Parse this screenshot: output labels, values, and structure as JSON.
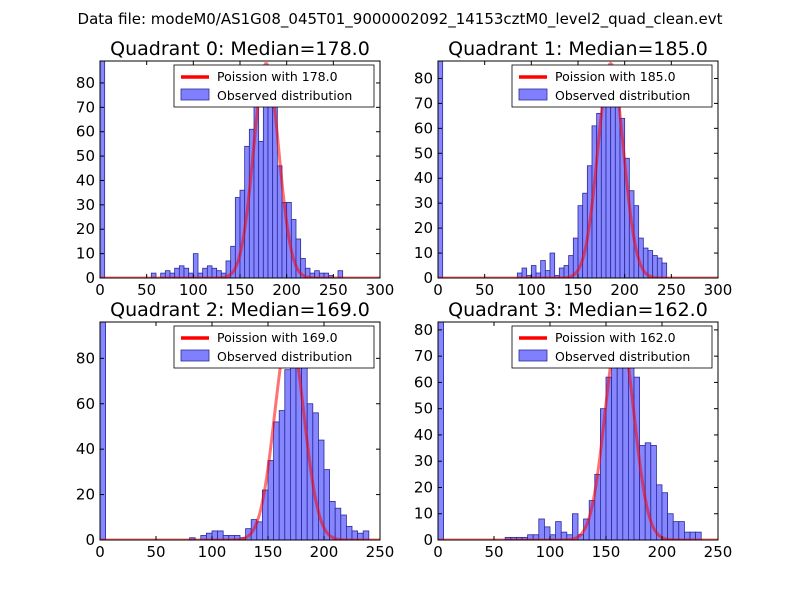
{
  "figure": {
    "suptitle": "Data file: modeM0/AS1G08_045T01_9000002092_14153cztM0_level2_quad_clean.evt"
  },
  "colors": {
    "histogram_fill": "#8080ff",
    "histogram_edge": "#2a2a9a",
    "poisson_line": "#ff0000",
    "axes": "#000000",
    "legend_edge": "#000000"
  },
  "chart_data": [
    {
      "type": "bar",
      "title": "Quadrant 0: Median=178.0",
      "legend": {
        "line": "Poission with 178.0",
        "bars": "Observed distribution",
        "position": "top-right"
      },
      "xlim": [
        0,
        300
      ],
      "ylim": [
        0,
        89
      ],
      "xticks": [
        0,
        50,
        100,
        150,
        200,
        250,
        300
      ],
      "yticks": [
        0,
        10,
        20,
        30,
        40,
        50,
        60,
        70,
        80
      ],
      "bin_width": 5,
      "bins": [
        [
          0,
          89
        ],
        [
          55,
          2
        ],
        [
          65,
          2
        ],
        [
          70,
          3
        ],
        [
          75,
          2
        ],
        [
          80,
          4
        ],
        [
          85,
          5
        ],
        [
          90,
          4
        ],
        [
          95,
          2
        ],
        [
          100,
          10
        ],
        [
          105,
          2
        ],
        [
          110,
          4
        ],
        [
          115,
          5
        ],
        [
          120,
          4
        ],
        [
          125,
          3
        ],
        [
          130,
          2
        ],
        [
          135,
          7
        ],
        [
          140,
          13
        ],
        [
          145,
          33
        ],
        [
          150,
          36
        ],
        [
          155,
          54
        ],
        [
          160,
          61
        ],
        [
          165,
          78
        ],
        [
          170,
          56
        ],
        [
          175,
          80
        ],
        [
          180,
          81
        ],
        [
          185,
          77
        ],
        [
          190,
          46
        ],
        [
          195,
          31
        ],
        [
          200,
          31
        ],
        [
          205,
          24
        ],
        [
          210,
          16
        ],
        [
          215,
          8
        ],
        [
          220,
          4
        ],
        [
          225,
          2
        ],
        [
          230,
          3
        ],
        [
          235,
          2
        ],
        [
          240,
          2
        ],
        [
          245,
          1
        ],
        [
          255,
          3
        ]
      ],
      "poisson": {
        "mean": 178.0,
        "peak": 88
      }
    },
    {
      "type": "bar",
      "title": "Quadrant 1: Median=185.0",
      "legend": {
        "line": "Poission with 185.0",
        "bars": "Observed distribution",
        "position": "top-right"
      },
      "xlim": [
        0,
        300
      ],
      "ylim": [
        0,
        87
      ],
      "xticks": [
        0,
        50,
        100,
        150,
        200,
        250,
        300
      ],
      "yticks": [
        0,
        10,
        20,
        30,
        40,
        50,
        60,
        70,
        80
      ],
      "bin_width": 5,
      "bins": [
        [
          0,
          87
        ],
        [
          85,
          2
        ],
        [
          90,
          4
        ],
        [
          95,
          1
        ],
        [
          100,
          5
        ],
        [
          105,
          2
        ],
        [
          110,
          7
        ],
        [
          115,
          3
        ],
        [
          120,
          10
        ],
        [
          125,
          1
        ],
        [
          130,
          4
        ],
        [
          135,
          5
        ],
        [
          140,
          9
        ],
        [
          145,
          16
        ],
        [
          150,
          29
        ],
        [
          155,
          34
        ],
        [
          160,
          45
        ],
        [
          165,
          61
        ],
        [
          170,
          66
        ],
        [
          175,
          80
        ],
        [
          180,
          73
        ],
        [
          185,
          80
        ],
        [
          190,
          70
        ],
        [
          195,
          64
        ],
        [
          200,
          48
        ],
        [
          205,
          35
        ],
        [
          210,
          29
        ],
        [
          215,
          16
        ],
        [
          220,
          12
        ],
        [
          225,
          11
        ],
        [
          230,
          9
        ],
        [
          235,
          8
        ],
        [
          240,
          6
        ]
      ],
      "poisson": {
        "mean": 185.0,
        "peak": 86
      }
    },
    {
      "type": "bar",
      "title": "Quadrant 2: Median=169.0",
      "legend": {
        "line": "Poission with 169.0",
        "bars": "Observed distribution",
        "position": "top-right"
      },
      "xlim": [
        0,
        250
      ],
      "ylim": [
        0,
        96
      ],
      "xticks": [
        0,
        50,
        100,
        150,
        200,
        250
      ],
      "yticks": [
        0,
        20,
        40,
        60,
        80
      ],
      "bin_width": 5,
      "bins": [
        [
          0,
          96
        ],
        [
          80,
          1
        ],
        [
          90,
          2
        ],
        [
          95,
          3
        ],
        [
          100,
          4
        ],
        [
          105,
          4
        ],
        [
          110,
          2
        ],
        [
          115,
          2
        ],
        [
          120,
          2
        ],
        [
          125,
          1
        ],
        [
          130,
          5
        ],
        [
          135,
          9
        ],
        [
          140,
          8
        ],
        [
          145,
          22
        ],
        [
          150,
          35
        ],
        [
          155,
          52
        ],
        [
          160,
          57
        ],
        [
          165,
          75
        ],
        [
          170,
          77
        ],
        [
          175,
          89
        ],
        [
          180,
          88
        ],
        [
          185,
          60
        ],
        [
          190,
          56
        ],
        [
          195,
          44
        ],
        [
          200,
          31
        ],
        [
          205,
          17
        ],
        [
          210,
          14
        ],
        [
          215,
          11
        ],
        [
          220,
          6
        ],
        [
          225,
          4
        ],
        [
          230,
          3
        ],
        [
          235,
          4
        ]
      ],
      "poisson": {
        "mean": 169.0,
        "peak": 92
      }
    },
    {
      "type": "bar",
      "title": "Quadrant 3: Median=162.0",
      "legend": {
        "line": "Poission with 162.0",
        "bars": "Observed distribution",
        "position": "top-right"
      },
      "xlim": [
        0,
        250
      ],
      "ylim": [
        0,
        83
      ],
      "xticks": [
        0,
        50,
        100,
        150,
        200,
        250
      ],
      "yticks": [
        0,
        10,
        20,
        30,
        40,
        50,
        60,
        70,
        80
      ],
      "bin_width": 5,
      "bins": [
        [
          0,
          83
        ],
        [
          60,
          1
        ],
        [
          65,
          1
        ],
        [
          70,
          1
        ],
        [
          75,
          1
        ],
        [
          80,
          2
        ],
        [
          85,
          2
        ],
        [
          90,
          8
        ],
        [
          95,
          5
        ],
        [
          100,
          2
        ],
        [
          105,
          7
        ],
        [
          110,
          3
        ],
        [
          115,
          2
        ],
        [
          120,
          10
        ],
        [
          125,
          2
        ],
        [
          130,
          8
        ],
        [
          135,
          15
        ],
        [
          140,
          25
        ],
        [
          145,
          50
        ],
        [
          150,
          62
        ],
        [
          155,
          66
        ],
        [
          160,
          80
        ],
        [
          165,
          70
        ],
        [
          170,
          68
        ],
        [
          175,
          62
        ],
        [
          180,
          36
        ],
        [
          185,
          37
        ],
        [
          190,
          36
        ],
        [
          195,
          21
        ],
        [
          200,
          18
        ],
        [
          205,
          10
        ],
        [
          210,
          7
        ],
        [
          215,
          7
        ],
        [
          220,
          3
        ],
        [
          225,
          3
        ],
        [
          230,
          3
        ]
      ],
      "poisson": {
        "mean": 162.0,
        "peak": 81
      }
    }
  ]
}
